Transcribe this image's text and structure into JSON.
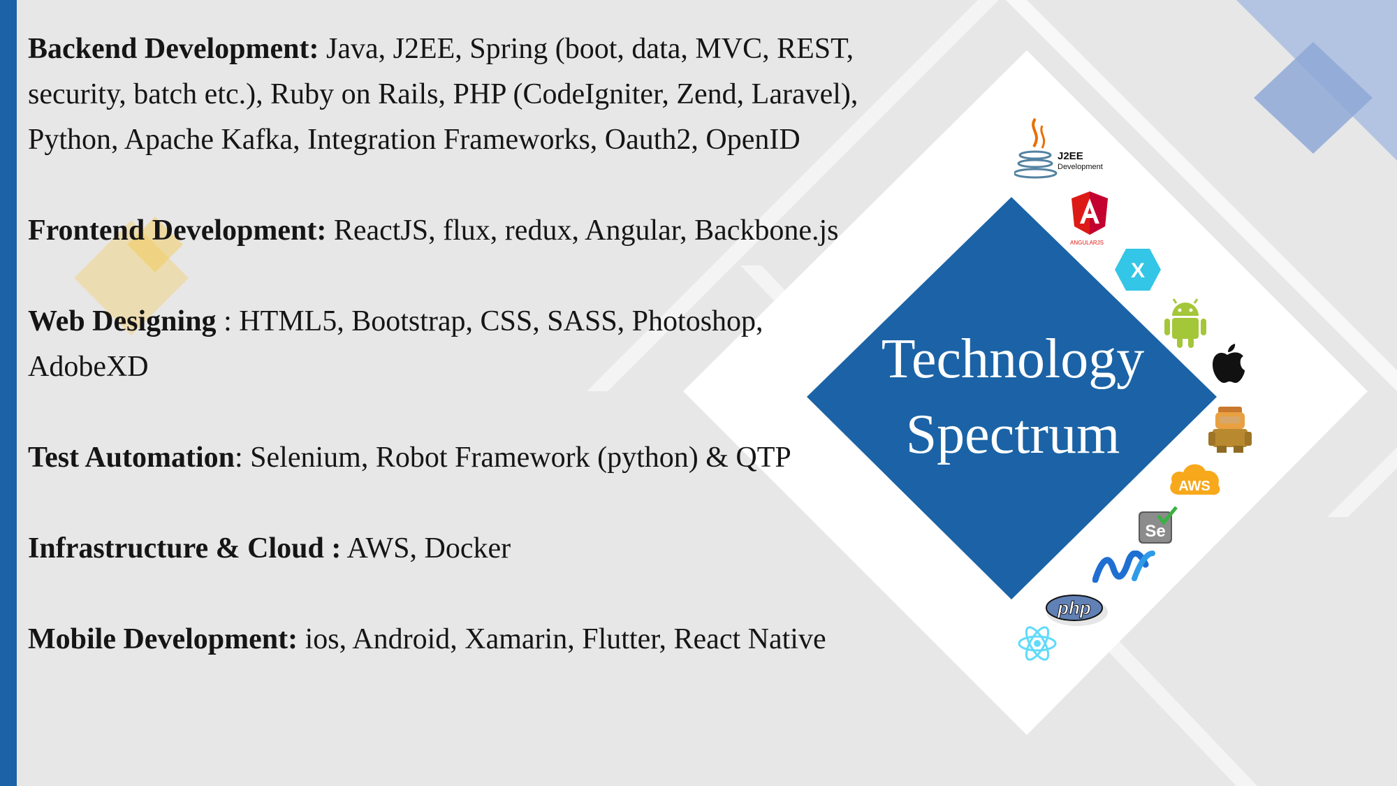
{
  "sections": [
    {
      "label": "Backend Development:",
      "text": " Java, J2EE, Spring (boot, data, MVC, REST, security, batch etc.), Ruby on Rails, PHP (CodeIgniter, Zend, Laravel), Python, Apache Kafka, Integration Frameworks, Oauth2, OpenID"
    },
    {
      "label": "Frontend Development:",
      "text": " ReactJS, flux, redux, Angular, Backbone.js"
    },
    {
      "label": "Web Designing",
      "text": " : HTML5, Bootstrap, CSS, SASS, Photoshop, AdobeXD"
    },
    {
      "label": "Test Automation",
      "text": ": Selenium, Robot Framework (python) & QTP"
    },
    {
      "label": "Infrastructure & Cloud :",
      "text": " AWS, Docker"
    },
    {
      "label": "Mobile Development:",
      "text": " ios, Android, Xamarin, Flutter, React Native"
    }
  ],
  "diamond": {
    "line1": "Technology",
    "line2": "Spectrum"
  },
  "icons": {
    "j2ee_label1": "J2EE",
    "j2ee_label2": "Development",
    "angular_label": "ANGULARJS",
    "xamarin_label": "X",
    "aws_label": "AWS",
    "selenium_label": "Se",
    "php_label": "php"
  },
  "colors": {
    "accent_blue": "#1b63a6",
    "background": "#e7e7e8",
    "highlight_yellow": "#f5c84a"
  }
}
